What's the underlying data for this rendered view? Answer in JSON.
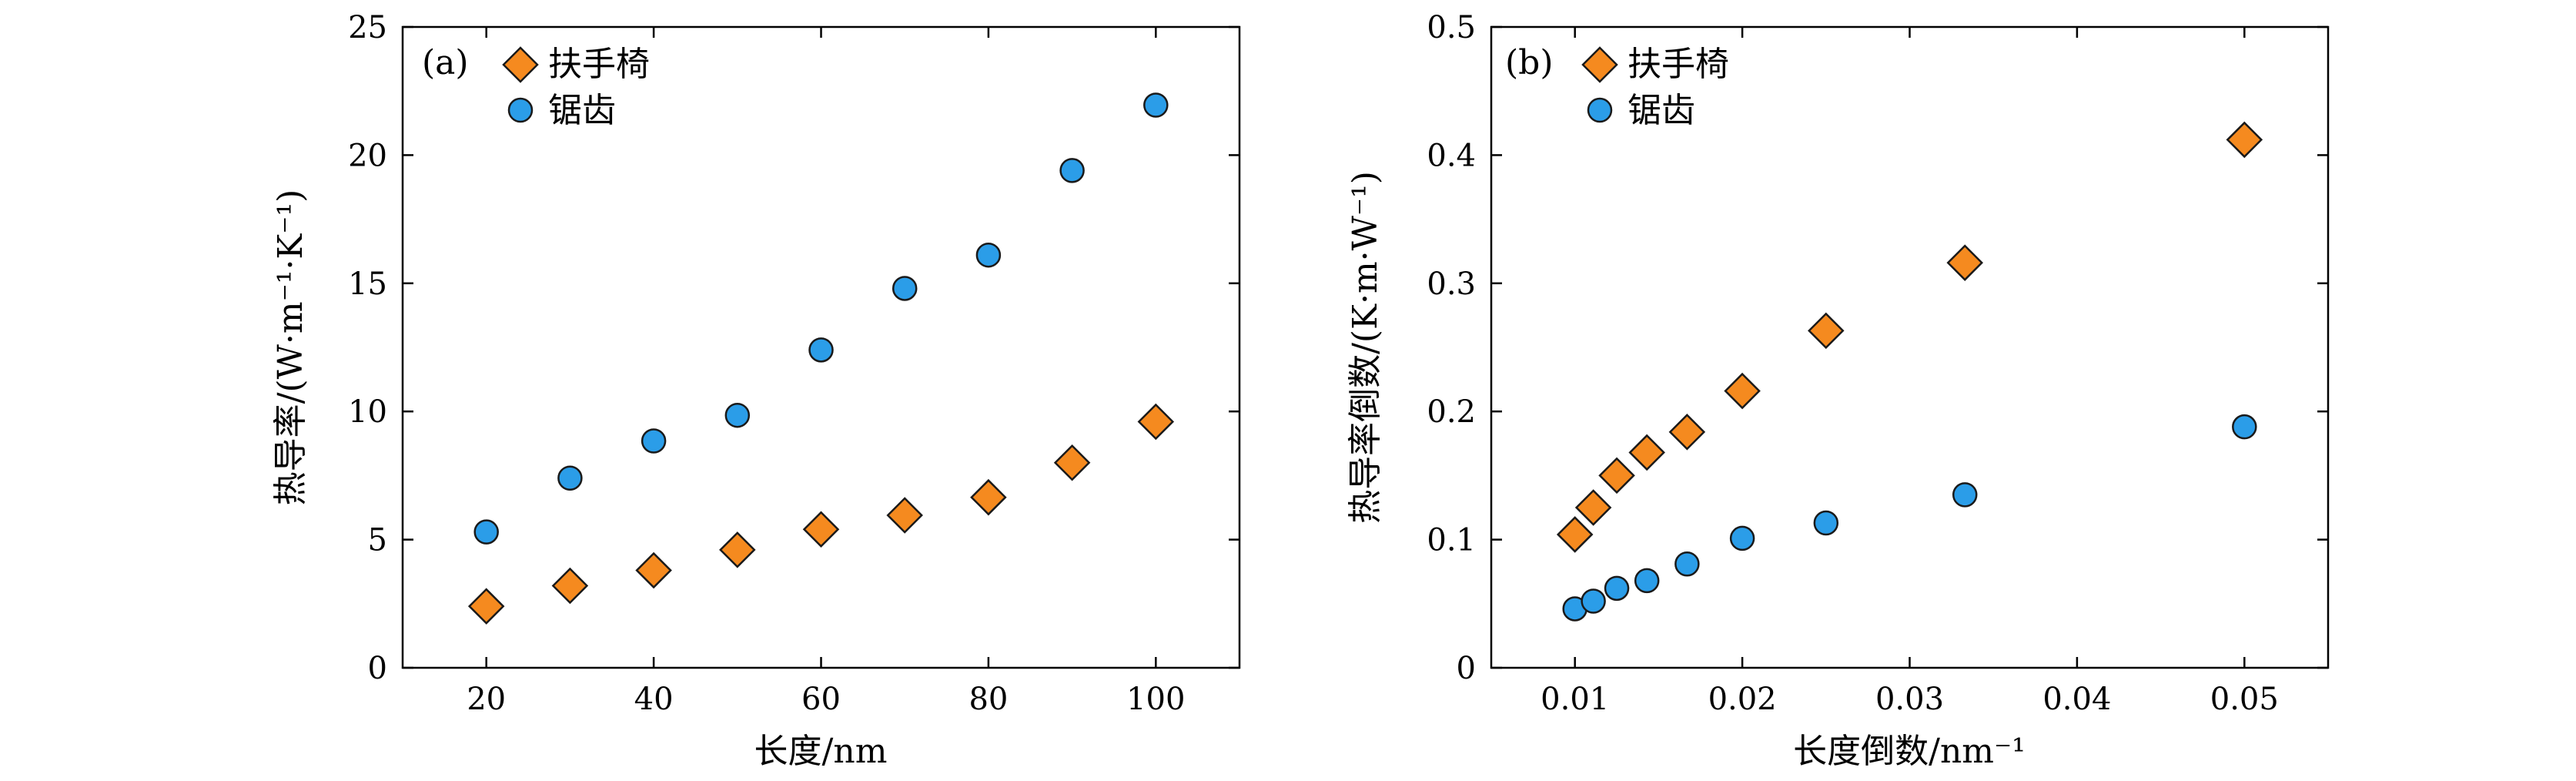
{
  "colors": {
    "chair": "#f58a1f",
    "zigzag": "#2b9de8",
    "stroke": "#1a1a1a",
    "axis": "#000000"
  },
  "chart_data": [
    {
      "type": "scatter",
      "panel": "(a)",
      "xlabel": "长度/nm",
      "ylabel": "热导率/(W·m⁻¹·K⁻¹)",
      "xlim": [
        10,
        110
      ],
      "ylim": [
        0,
        25
      ],
      "xticks": [
        20,
        40,
        60,
        80,
        100
      ],
      "xtick_labels": [
        "20",
        "40",
        "60",
        "80",
        "100"
      ],
      "yticks": [
        0,
        5,
        10,
        15,
        20,
        25
      ],
      "ytick_labels": [
        "0",
        "5",
        "10",
        "15",
        "20",
        "25"
      ],
      "legend_position": "top-left",
      "series": [
        {
          "name": "扶手椅",
          "marker": "diamond",
          "x": [
            20,
            30,
            40,
            50,
            60,
            70,
            80,
            90,
            100
          ],
          "y": [
            2.4,
            3.2,
            3.8,
            4.6,
            5.4,
            5.95,
            6.65,
            8.0,
            9.6
          ]
        },
        {
          "name": "锯齿",
          "marker": "circle",
          "x": [
            20,
            30,
            40,
            50,
            60,
            70,
            80,
            90,
            100
          ],
          "y": [
            5.3,
            7.4,
            8.85,
            9.85,
            12.4,
            14.8,
            16.1,
            19.4,
            21.95
          ]
        }
      ]
    },
    {
      "type": "scatter",
      "panel": "(b)",
      "xlabel": "长度倒数/nm⁻¹",
      "ylabel": "热导率倒数/(K·m·W⁻¹)",
      "xlim": [
        0.005,
        0.055
      ],
      "ylim": [
        0,
        0.5
      ],
      "xticks": [
        0.01,
        0.02,
        0.03,
        0.04,
        0.05
      ],
      "xtick_labels": [
        "0.01",
        "0.02",
        "0.03",
        "0.04",
        "0.05"
      ],
      "yticks": [
        0,
        0.1,
        0.2,
        0.3,
        0.4,
        0.5
      ],
      "ytick_labels": [
        "0",
        "0.1",
        "0.2",
        "0.3",
        "0.4",
        "0.5"
      ],
      "legend_position": "top-left",
      "series": [
        {
          "name": "扶手椅",
          "marker": "diamond",
          "x": [
            0.01,
            0.0111,
            0.0125,
            0.0143,
            0.0167,
            0.02,
            0.025,
            0.0333,
            0.05
          ],
          "y": [
            0.104,
            0.125,
            0.15,
            0.168,
            0.184,
            0.216,
            0.263,
            0.316,
            0.412
          ]
        },
        {
          "name": "锯齿",
          "marker": "circle",
          "x": [
            0.01,
            0.0111,
            0.0125,
            0.0143,
            0.0167,
            0.02,
            0.025,
            0.0333,
            0.05
          ],
          "y": [
            0.046,
            0.052,
            0.062,
            0.068,
            0.081,
            0.101,
            0.113,
            0.135,
            0.188
          ]
        }
      ]
    }
  ]
}
